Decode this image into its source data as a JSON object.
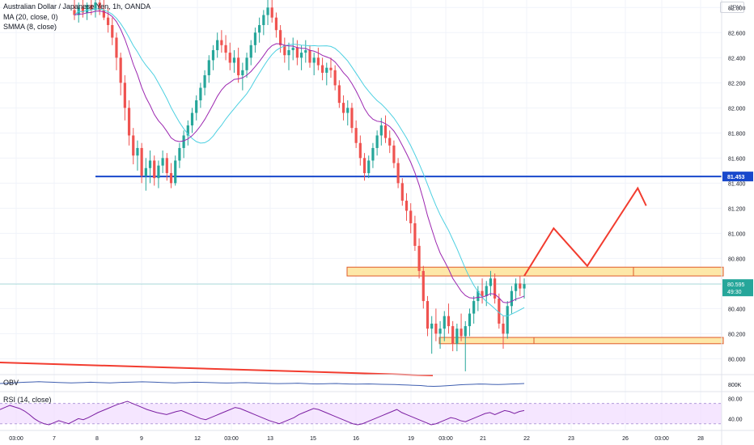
{
  "header": {
    "symbol_line": "Australian Dollar / Japanese Yen, 1h, OANDA",
    "ma_label": "MA (20, close, 0)",
    "smma_label": "SMMA (8, close)"
  },
  "currency_badge": "JPY",
  "price_scale": {
    "ticks": [
      "82.800",
      "82.600",
      "82.400",
      "82.200",
      "82.000",
      "81.800",
      "81.600",
      "81.400",
      "81.200",
      "81.000",
      "80.800",
      "80.600",
      "80.400",
      "80.200",
      "80.000"
    ],
    "level_label": "81.453",
    "current_price": "80.595",
    "countdown": "49:30"
  },
  "obv": {
    "label": "OBV",
    "scale_tick": "800K"
  },
  "rsi": {
    "label": "RSI (14, close)",
    "ticks": [
      "80.00",
      "40.00"
    ]
  },
  "time_axis": [
    "03:00",
    "7",
    "8",
    "9",
    "12",
    "03:00",
    "13",
    "15",
    "16",
    "19",
    "03:00",
    "21",
    "22",
    "23",
    "26",
    "03:00",
    "28"
  ],
  "colors": {
    "up": "#26a69a",
    "down": "#ef5350",
    "ma": "#4dd0e1",
    "smma": "#9c27b0",
    "level_line": "#1848cc",
    "zone_fill": "#fde8a8",
    "zone_border": "#e05a2a",
    "projection": "#f23c2f",
    "rsi_line": "#7b1fa2",
    "rsi_band": "#f1dcff",
    "obv_line": "#3f5fb0"
  },
  "chart_data": {
    "type": "candlestick",
    "ylim": [
      79.88,
      82.86
    ],
    "horizontal_level": 81.453,
    "current_price": 80.595,
    "zones": [
      {
        "low": 80.66,
        "high": 80.73
      },
      {
        "low": 80.12,
        "high": 80.17
      }
    ],
    "candles": [
      [
        82.78,
        82.86,
        82.7,
        82.74
      ],
      [
        82.74,
        82.84,
        82.68,
        82.8
      ],
      [
        82.8,
        82.86,
        82.72,
        82.76
      ],
      [
        82.76,
        82.84,
        82.7,
        82.82
      ],
      [
        82.82,
        82.86,
        82.74,
        82.78
      ],
      [
        82.78,
        82.86,
        82.72,
        82.84
      ],
      [
        82.84,
        82.86,
        82.74,
        82.78
      ],
      [
        82.78,
        82.86,
        82.7,
        82.72
      ],
      [
        82.72,
        82.8,
        82.6,
        82.66
      ],
      [
        82.66,
        82.72,
        82.5,
        82.56
      ],
      [
        82.56,
        82.6,
        82.3,
        82.4
      ],
      [
        82.4,
        82.44,
        82.1,
        82.2
      ],
      [
        82.2,
        82.26,
        81.9,
        82.0
      ],
      [
        82.0,
        82.06,
        81.7,
        81.78
      ],
      [
        81.78,
        81.84,
        81.55,
        81.62
      ],
      [
        81.62,
        81.74,
        81.5,
        81.68
      ],
      [
        81.68,
        81.72,
        81.4,
        81.46
      ],
      [
        81.46,
        81.6,
        81.34,
        81.52
      ],
      [
        81.52,
        81.66,
        81.4,
        81.58
      ],
      [
        81.58,
        81.62,
        81.38,
        81.44
      ],
      [
        81.44,
        81.58,
        81.36,
        81.54
      ],
      [
        81.54,
        81.66,
        81.48,
        81.6
      ],
      [
        81.6,
        81.64,
        81.42,
        81.48
      ],
      [
        81.48,
        81.56,
        81.36,
        81.4
      ],
      [
        81.4,
        81.62,
        81.38,
        81.58
      ],
      [
        81.58,
        81.72,
        81.52,
        81.68
      ],
      [
        81.68,
        81.82,
        81.6,
        81.78
      ],
      [
        81.78,
        81.9,
        81.7,
        81.86
      ],
      [
        81.86,
        82.0,
        81.8,
        81.96
      ],
      [
        81.96,
        82.1,
        81.9,
        82.06
      ],
      [
        82.06,
        82.2,
        82.0,
        82.16
      ],
      [
        82.16,
        82.3,
        82.1,
        82.26
      ],
      [
        82.26,
        82.42,
        82.2,
        82.38
      ],
      [
        82.38,
        82.5,
        82.3,
        82.46
      ],
      [
        82.46,
        82.6,
        82.4,
        82.54
      ],
      [
        82.54,
        82.62,
        82.44,
        82.5
      ],
      [
        82.5,
        82.58,
        82.38,
        82.44
      ],
      [
        82.44,
        82.52,
        82.3,
        82.36
      ],
      [
        82.36,
        82.46,
        82.28,
        82.4
      ],
      [
        82.4,
        82.48,
        82.2,
        82.26
      ],
      [
        82.26,
        82.36,
        82.14,
        82.3
      ],
      [
        82.3,
        82.44,
        82.24,
        82.4
      ],
      [
        82.4,
        82.54,
        82.34,
        82.5
      ],
      [
        82.5,
        82.64,
        82.44,
        82.6
      ],
      [
        82.6,
        82.72,
        82.52,
        82.66
      ],
      [
        82.66,
        82.78,
        82.58,
        82.74
      ],
      [
        82.74,
        82.86,
        82.66,
        82.8
      ],
      [
        82.8,
        82.86,
        82.68,
        82.72
      ],
      [
        82.72,
        82.76,
        82.56,
        82.62
      ],
      [
        82.62,
        82.66,
        82.44,
        82.5
      ],
      [
        82.5,
        82.56,
        82.36,
        82.42
      ],
      [
        82.42,
        82.52,
        82.3,
        82.46
      ],
      [
        82.46,
        82.56,
        82.38,
        82.48
      ],
      [
        82.48,
        82.54,
        82.34,
        82.4
      ],
      [
        82.4,
        82.5,
        82.3,
        82.44
      ],
      [
        82.44,
        82.54,
        82.36,
        82.46
      ],
      [
        82.46,
        82.5,
        82.32,
        82.36
      ],
      [
        82.36,
        82.44,
        82.26,
        82.4
      ],
      [
        82.4,
        82.48,
        82.3,
        82.34
      ],
      [
        82.34,
        82.4,
        82.22,
        82.28
      ],
      [
        82.28,
        82.36,
        82.18,
        82.32
      ],
      [
        82.32,
        82.4,
        82.24,
        82.3
      ],
      [
        82.3,
        82.34,
        82.14,
        82.18
      ],
      [
        82.18,
        82.22,
        82.0,
        82.04
      ],
      [
        82.04,
        82.1,
        81.9,
        81.96
      ],
      [
        81.96,
        82.06,
        81.86,
        82.0
      ],
      [
        82.0,
        82.04,
        81.8,
        81.84
      ],
      [
        81.84,
        81.9,
        81.68,
        81.72
      ],
      [
        81.72,
        81.78,
        81.54,
        81.6
      ],
      [
        81.6,
        81.64,
        81.42,
        81.48
      ],
      [
        81.48,
        81.62,
        81.44,
        81.58
      ],
      [
        81.58,
        81.72,
        81.52,
        81.68
      ],
      [
        81.68,
        81.82,
        81.62,
        81.78
      ],
      [
        81.78,
        81.92,
        81.7,
        81.86
      ],
      [
        81.86,
        81.94,
        81.72,
        81.76
      ],
      [
        81.76,
        81.82,
        81.64,
        81.7
      ],
      [
        81.7,
        81.74,
        81.52,
        81.56
      ],
      [
        81.56,
        81.6,
        81.36,
        81.4
      ],
      [
        81.4,
        81.44,
        81.22,
        81.26
      ],
      [
        81.26,
        81.32,
        81.1,
        81.18
      ],
      [
        81.18,
        81.24,
        81.0,
        81.08
      ],
      [
        81.08,
        81.14,
        80.86,
        80.9
      ],
      [
        80.9,
        80.96,
        80.64,
        80.7
      ],
      [
        80.7,
        80.74,
        80.4,
        80.46
      ],
      [
        80.46,
        80.5,
        80.18,
        80.24
      ],
      [
        80.24,
        80.34,
        80.04,
        80.28
      ],
      [
        80.28,
        80.4,
        80.14,
        80.2
      ],
      [
        80.2,
        80.3,
        80.08,
        80.24
      ],
      [
        80.24,
        80.38,
        80.14,
        80.34
      ],
      [
        80.34,
        80.44,
        80.2,
        80.26
      ],
      [
        80.26,
        80.3,
        80.06,
        80.12
      ],
      [
        80.12,
        80.28,
        80.06,
        80.24
      ],
      [
        80.24,
        80.36,
        80.14,
        80.18
      ],
      [
        80.18,
        80.3,
        79.9,
        80.26
      ],
      [
        80.26,
        80.4,
        80.18,
        80.36
      ],
      [
        80.36,
        80.5,
        80.28,
        80.46
      ],
      [
        80.46,
        80.58,
        80.38,
        80.54
      ],
      [
        80.54,
        80.64,
        80.44,
        80.5
      ],
      [
        80.5,
        80.62,
        80.42,
        80.58
      ],
      [
        80.58,
        80.7,
        80.5,
        80.64
      ],
      [
        80.64,
        80.68,
        80.44,
        80.48
      ],
      [
        80.48,
        80.52,
        80.24,
        80.28
      ],
      [
        80.28,
        80.34,
        80.08,
        80.2
      ],
      [
        80.2,
        80.46,
        80.16,
        80.42
      ],
      [
        80.42,
        80.58,
        80.36,
        80.54
      ],
      [
        80.54,
        80.64,
        80.46,
        80.6
      ],
      [
        80.6,
        80.66,
        80.5,
        80.56
      ],
      [
        80.56,
        80.64,
        80.48,
        80.595
      ]
    ],
    "projection": [
      [
        0,
        80.66
      ],
      [
        7,
        81.04
      ],
      [
        15,
        80.74
      ],
      [
        27,
        81.36
      ],
      [
        29,
        81.22
      ]
    ],
    "rsi_ylim": [
      20,
      90
    ],
    "rsi": [
      58,
      62,
      66,
      63,
      60,
      55,
      48,
      40,
      34,
      30,
      28,
      32,
      36,
      33,
      30,
      35,
      40,
      38,
      42,
      47,
      52,
      56,
      60,
      64,
      68,
      71,
      74,
      70,
      66,
      62,
      58,
      55,
      52,
      50,
      48,
      51,
      54,
      56,
      52,
      48,
      44,
      40,
      38,
      42,
      46,
      50,
      54,
      58,
      62,
      60,
      56,
      52,
      48,
      44,
      40,
      36,
      33,
      30,
      34,
      38,
      42,
      48,
      52,
      56,
      60,
      58,
      54,
      50,
      46,
      42,
      38,
      34,
      30,
      28,
      30,
      34,
      38,
      42,
      46,
      50,
      54,
      58,
      52,
      48,
      44,
      40,
      36,
      32,
      28,
      30,
      34,
      38,
      42,
      40,
      36,
      34,
      38,
      42,
      46,
      50,
      52,
      48,
      52,
      56,
      54,
      50,
      54,
      56
    ],
    "obv": [
      0.5,
      0.52,
      0.55,
      0.58,
      0.6,
      0.62,
      0.64,
      0.62,
      0.6,
      0.58,
      0.56,
      0.55,
      0.56,
      0.58,
      0.6,
      0.58,
      0.56,
      0.55,
      0.57,
      0.59,
      0.6,
      0.62,
      0.63,
      0.62,
      0.6,
      0.58,
      0.56,
      0.55,
      0.57,
      0.58,
      0.6,
      0.59,
      0.58,
      0.56,
      0.55,
      0.54,
      0.55,
      0.56,
      0.57,
      0.55,
      0.53,
      0.52,
      0.5,
      0.49,
      0.5,
      0.51,
      0.52,
      0.5,
      0.48,
      0.47,
      0.48,
      0.49,
      0.5,
      0.48,
      0.46,
      0.45,
      0.46,
      0.47,
      0.45,
      0.44,
      0.43,
      0.42,
      0.4,
      0.38,
      0.36,
      0.34,
      0.3,
      0.28,
      0.3,
      0.33,
      0.36,
      0.4,
      0.42,
      0.44,
      0.46,
      0.45,
      0.43,
      0.42,
      0.44,
      0.46,
      0.48,
      0.5
    ]
  }
}
